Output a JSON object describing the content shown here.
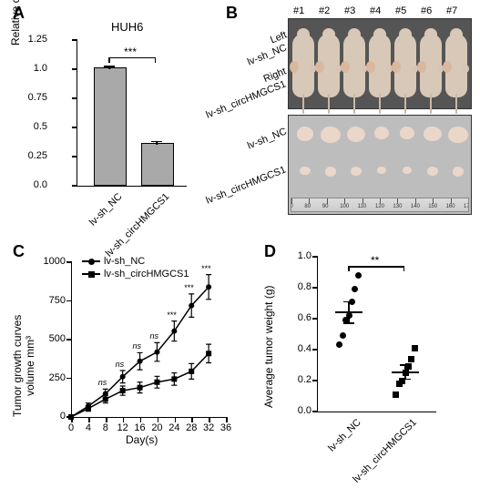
{
  "panels": {
    "A": "A",
    "B": "B",
    "C": "C",
    "D": "D"
  },
  "A": {
    "title": "HUH6",
    "ylabel": "Relative circHMGCS1 expression",
    "ylim": [
      0,
      1.25
    ],
    "ytick_step": 0.25,
    "bar_color": "#a9a9a9",
    "bar_border": "#000000",
    "groups": [
      {
        "label": "lv-sh_NC",
        "value": 1.0,
        "err": 0.025
      },
      {
        "label": "lv-sh_circHMGCS1",
        "value": 0.35,
        "err": 0.03
      }
    ],
    "significance": "***"
  },
  "B": {
    "n": 7,
    "col_labels": [
      "#1",
      "#2",
      "#3",
      "#4",
      "#5",
      "#6",
      "#7"
    ],
    "top_photo_rows": [
      {
        "side": "Left",
        "label": "lv-sh_NC"
      },
      {
        "side": "Right",
        "label": "lv-sh_circHMGCS1"
      }
    ],
    "bottom_rows": [
      {
        "label": "lv-sh_NC",
        "size": 1.0
      },
      {
        "label": "lv-sh_circHMGCS1",
        "size": 0.55
      }
    ],
    "flank_nc_color": "#d9b89f",
    "flank_kd_color": "#d9c5b5",
    "tumor_color": "#ead7c9",
    "ruler_start_mm": 70,
    "ruler_end_mm": 170,
    "ruler_end_label": "6 in"
  },
  "C": {
    "ylabel": "Tumor growth curves\\nvolume mm³",
    "xlabel": "Day(s)",
    "legend": [
      "lv-sh_NC",
      "lv-sh_circHMGCS1"
    ],
    "marker_nc": "circle",
    "marker_kd": "square",
    "line_color": "#000000",
    "line_width": 1.5,
    "marker_size": 6,
    "xlim": [
      0,
      36
    ],
    "ylim": [
      0,
      1000
    ],
    "xticks": [
      0,
      4,
      8,
      12,
      16,
      20,
      24,
      28,
      32,
      36
    ],
    "yticks": [
      0,
      250,
      500,
      750,
      1000
    ],
    "days": [
      0,
      4,
      8,
      12,
      16,
      20,
      24,
      28,
      32
    ],
    "nc": {
      "mean": [
        0,
        70,
        150,
        260,
        360,
        420,
        555,
        720,
        840
      ],
      "err": [
        0,
        20,
        30,
        40,
        55,
        60,
        65,
        75,
        80
      ]
    },
    "kd": {
      "mean": [
        0,
        55,
        115,
        170,
        190,
        225,
        245,
        295,
        410
      ],
      "err": [
        0,
        18,
        25,
        30,
        35,
        38,
        40,
        50,
        60
      ]
    },
    "annot": [
      {
        "day": 8,
        "text": "ns",
        "italic": true
      },
      {
        "day": 12,
        "text": "ns",
        "italic": true
      },
      {
        "day": 16,
        "text": "ns",
        "italic": true
      },
      {
        "day": 20,
        "text": "ns",
        "italic": true
      },
      {
        "day": 24,
        "text": "***",
        "italic": false
      },
      {
        "day": 28,
        "text": "***",
        "italic": false
      },
      {
        "day": 32,
        "text": "***",
        "italic": false
      }
    ]
  },
  "D": {
    "ylabel": "Average tumor weight (g)",
    "ylim": [
      0,
      1.0
    ],
    "ytick_step": 0.2,
    "groups": [
      {
        "label": "lv-sh_NC",
        "marker": "circle",
        "points": [
          0.43,
          0.49,
          0.59,
          0.62,
          0.71,
          0.79,
          0.88
        ],
        "mean": 0.64,
        "sem": 0.07
      },
      {
        "label": "lv-sh_circHMGCS1",
        "marker": "square",
        "points": [
          0.11,
          0.18,
          0.2,
          0.25,
          0.29,
          0.34,
          0.41
        ],
        "mean": 0.254,
        "sem": 0.045
      }
    ],
    "significance": "**"
  },
  "colors": {
    "axis": "#000000",
    "text": "#000000"
  }
}
